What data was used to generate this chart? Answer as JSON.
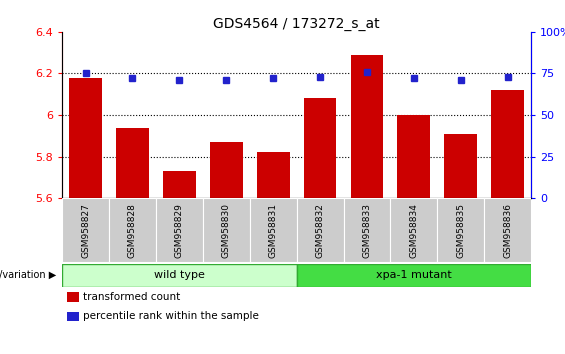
{
  "title": "GDS4564 / 173272_s_at",
  "samples": [
    "GSM958827",
    "GSM958828",
    "GSM958829",
    "GSM958830",
    "GSM958831",
    "GSM958832",
    "GSM958833",
    "GSM958834",
    "GSM958835",
    "GSM958836"
  ],
  "transformed_count": [
    6.18,
    5.94,
    5.73,
    5.87,
    5.82,
    6.08,
    6.29,
    6.0,
    5.91,
    6.12
  ],
  "percentile_rank": [
    75,
    72,
    71,
    71,
    72,
    73,
    76,
    72,
    71,
    73
  ],
  "ylim_left": [
    5.6,
    6.4
  ],
  "ylim_right": [
    0,
    100
  ],
  "yticks_left": [
    5.6,
    5.8,
    6.0,
    6.2,
    6.4
  ],
  "yticks_right": [
    0,
    25,
    50,
    75,
    100
  ],
  "ytick_labels_left": [
    "5.6",
    "5.8",
    "6",
    "6.2",
    "6.4"
  ],
  "ytick_labels_right": [
    "0",
    "25",
    "50",
    "75",
    "100%"
  ],
  "grid_lines": [
    5.8,
    6.0,
    6.2
  ],
  "bar_color": "#cc0000",
  "dot_color": "#2222cc",
  "bar_width": 0.7,
  "groups": [
    {
      "label": "wild type",
      "indices": [
        0,
        1,
        2,
        3,
        4
      ],
      "color": "#ccffcc",
      "border": "#33aa33"
    },
    {
      "label": "xpa-1 mutant",
      "indices": [
        5,
        6,
        7,
        8,
        9
      ],
      "color": "#44dd44",
      "border": "#33aa33"
    }
  ],
  "group_label": "genotype/variation",
  "legend_items": [
    {
      "color": "#cc0000",
      "label": "transformed count"
    },
    {
      "color": "#2222cc",
      "label": "percentile rank within the sample"
    }
  ],
  "tick_label_bg": "#cccccc",
  "title_fontsize": 10,
  "tick_fontsize": 8,
  "sample_label_fontsize": 6.5
}
